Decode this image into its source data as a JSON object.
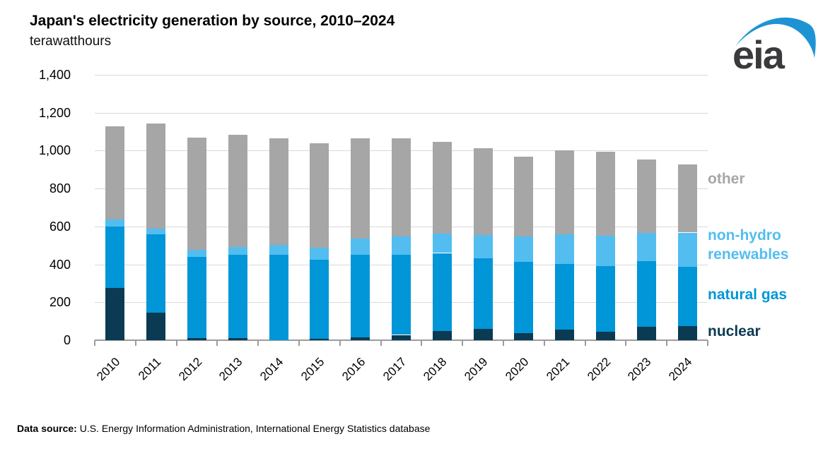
{
  "header": {
    "title": "Japan's electricity generation by source, 2010–2024",
    "subtitle": "terawatthours"
  },
  "logo": {
    "text": "eia",
    "swoosh_color": "#1e93d3",
    "text_color": "#3a3a3c"
  },
  "chart_data": {
    "type": "bar",
    "stacked": true,
    "title": "Japan's electricity generation by source, 2010–2024",
    "ylabel": "terawatthours",
    "xlabel": "",
    "ylim": [
      0,
      1400
    ],
    "ytick_interval": 200,
    "ytick_labels": [
      "0",
      "200",
      "400",
      "600",
      "800",
      "1,000",
      "1,200",
      "1,400"
    ],
    "grid": true,
    "legend_position": "right",
    "categories": [
      "2010",
      "2011",
      "2012",
      "2013",
      "2014",
      "2015",
      "2016",
      "2017",
      "2018",
      "2019",
      "2020",
      "2021",
      "2022",
      "2023",
      "2024"
    ],
    "series": [
      {
        "name": "nuclear",
        "color": "#0b3a53",
        "values": [
          275,
          145,
          12,
          10,
          0,
          8,
          15,
          28,
          48,
          60,
          38,
          57,
          45,
          72,
          76
        ]
      },
      {
        "name": "natural gas",
        "color": "#0096d7",
        "values": [
          323,
          415,
          428,
          440,
          450,
          418,
          435,
          422,
          412,
          371,
          375,
          346,
          345,
          344,
          312
        ]
      },
      {
        "name": "non-hydro renewables",
        "color": "#53bdf0",
        "values": [
          40,
          30,
          38,
          43,
          52,
          63,
          86,
          99,
          101,
          124,
          136,
          155,
          161,
          149,
          180
        ]
      },
      {
        "name": "other",
        "color": "#a6a6a6",
        "values": [
          492,
          555,
          592,
          592,
          563,
          551,
          529,
          516,
          484,
          458,
          421,
          442,
          444,
          390,
          360
        ]
      }
    ],
    "totals": [
      1130,
      1145,
      1070,
      1085,
      1065,
      1040,
      1065,
      1065,
      1045,
      1013,
      970,
      1000,
      995,
      955,
      928
    ]
  },
  "legend": {
    "items": [
      {
        "label": "other",
        "color": "#a6a6a6"
      },
      {
        "label": "non-hydro renewables",
        "color": "#53bdf0"
      },
      {
        "label": "natural gas",
        "color": "#0096d7"
      },
      {
        "label": "nuclear",
        "color": "#0b3a53"
      }
    ]
  },
  "footer": {
    "label": "Data source:",
    "text": " U.S. Energy Information Administration, International Energy Statistics database"
  }
}
